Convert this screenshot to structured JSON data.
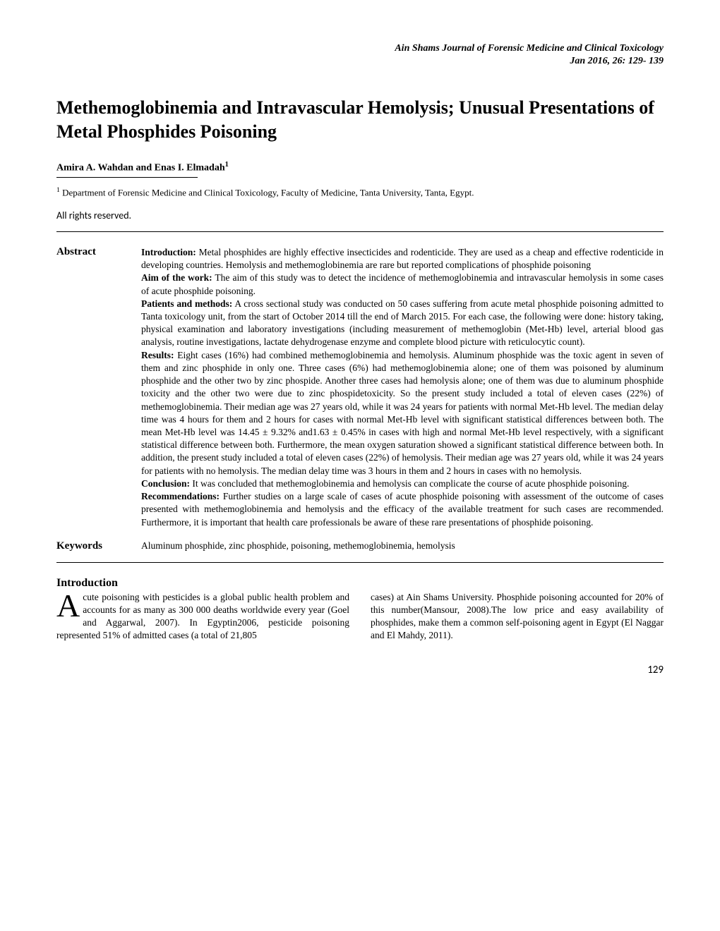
{
  "journal": {
    "name": "Ain Shams Journal of Forensic Medicine and Clinical Toxicology",
    "issue": "Jan 2016, 26: 129- 139"
  },
  "title": "Methemoglobinemia and Intravascular Hemolysis; Unusual Presentations of Metal Phosphides Poisoning",
  "authors": "Amira A. Wahdan and Enas I. Elmadah",
  "author_sup": "1",
  "affiliation_sup": "1",
  "affiliation": " Department of Forensic Medicine and Clinical Toxicology, Faculty of Medicine, Tanta University, Tanta, Egypt.",
  "rights": "All rights reserved.",
  "abstract_label": "Abstract",
  "abstract": {
    "intro_label": "Introduction:",
    "intro": " Metal phosphides are highly effective insecticides and rodenticide. They are used as a cheap and effective rodenticide in developing countries. Hemolysis and methemoglobinemia are rare but reported complications of phosphide poisoning",
    "aim_label": "Aim of the work:",
    "aim": " The aim of this study was to detect the incidence of methemoglobinemia and intravascular hemolysis in some cases of acute phosphide poisoning.",
    "methods_label": "Patients and methods:",
    "methods": " A cross sectional study was conducted on 50 cases suffering from acute metal phosphide poisoning admitted to Tanta toxicology unit, from the start of October 2014 till the end of March 2015. For each case, the following were done: history taking, physical examination and laboratory investigations (including measurement of methemoglobin (Met-Hb) level, arterial blood gas analysis, routine investigations, lactate dehydrogenase enzyme and complete blood picture with reticulocytic count).",
    "results_label": "Results:",
    "results": " Eight cases (16%) had combined methemoglobinemia and hemolysis. Aluminum phosphide was the toxic agent in seven of them and zinc phosphide in only one. Three cases (6%) had methemoglobinemia alone; one of them was poisoned by aluminum phosphide and the other two by zinc phospide. Another three cases had hemolysis alone; one of them was due to aluminum phosphide toxicity and the other two were due to zinc phospidetoxicity. So the present study included a total of eleven cases (22%) of methemoglobinemia. Their median age was 27 years old, while it was 24 years for patients with normal Met-Hb level. The median delay time was 4 hours for them and 2 hours for cases with normal Met-Hb level with significant statistical differences between both. The mean Met-Hb level was 14.45 ± 9.32% and1.63 ± 0.45% in cases with high and normal Met-Hb level respectively, with a significant statistical difference between both. Furthermore, the mean oxygen saturation showed a significant statistical difference between both. In addition, the present study included a total of eleven cases (22%) of hemolysis. Their median age was 27 years old, while it was 24 years for patients with no hemolysis. The median delay time was 3 hours in them and 2 hours in cases with no hemolysis.",
    "conclusion_label": "Conclusion:",
    "conclusion": " It was concluded that methemoglobinemia and hemolysis can complicate the course of acute phosphide poisoning.",
    "recommendations_label": "Recommendations:",
    "recommendations": " Further studies on a large scale of cases of acute phosphide poisoning with assessment of the outcome of cases presented with methemoglobinemia and hemolysis and the efficacy of the available treatment for such cases are recommended. Furthermore, it is important that health care professionals be aware of these rare presentations of phosphide poisoning."
  },
  "keywords_label": "Keywords",
  "keywords": "Aluminum phosphide, zinc phosphide, poisoning, methemoglobinemia, hemolysis",
  "intro_heading": "Introduction",
  "intro_dropcap": "A",
  "intro_col1": "cute poisoning with pesticides is a global public health problem and accounts for as many as 300 000 deaths worldwide every year (Goel and Aggarwal, 2007). In Egyptin2006, pesticide poisoning represented 51% of admitted cases (a total of 21,805",
  "intro_col2": "cases) at Ain Shams University. Phosphide poisoning accounted for 20% of this number(Mansour, 2008).The low price and easy availability of phosphides, make them a common self-poisoning agent in Egypt (El Naggar and El Mahdy, 2011).",
  "page_number": "129"
}
